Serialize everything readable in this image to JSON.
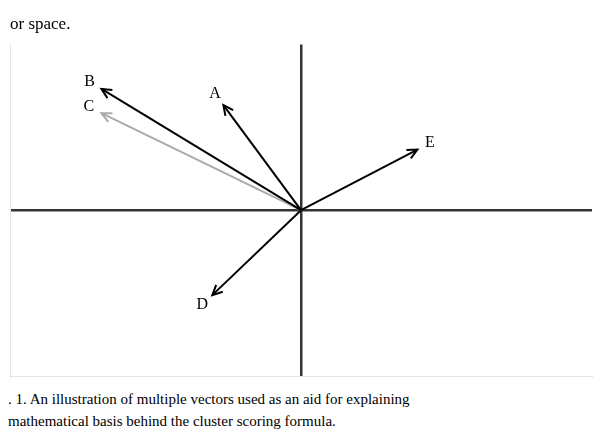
{
  "chart_data": {
    "type": "vector",
    "title": "or space.",
    "annotations": [
      ". 1. An illustration of multiple vectors used as an aid for explaining",
      "mathematical basis behind the cluster scoring formula."
    ],
    "series": [
      {
        "name": "A",
        "color": "#000000",
        "values": [
          [
            0,
            0
          ],
          [
            -0.28,
            0.52
          ]
        ]
      },
      {
        "name": "B",
        "color": "#000000",
        "values": [
          [
            0,
            0
          ],
          [
            -0.72,
            0.6
          ]
        ]
      },
      {
        "name": "C",
        "color": "#aaaaaa",
        "values": [
          [
            0,
            0
          ],
          [
            -0.72,
            0.48
          ]
        ]
      },
      {
        "name": "D",
        "color": "#000000",
        "values": [
          [
            0,
            0
          ],
          [
            -0.32,
            -0.42
          ]
        ]
      },
      {
        "name": "E",
        "color": "#000000",
        "values": [
          [
            0,
            0
          ],
          [
            0.42,
            0.3
          ]
        ]
      }
    ],
    "xlim": [
      -1.05,
      1.05
    ],
    "ylim": [
      -0.82,
      0.82
    ],
    "xticks": [
      0
    ],
    "yticks": [
      0
    ],
    "grid": true,
    "tick_labels": false
  }
}
